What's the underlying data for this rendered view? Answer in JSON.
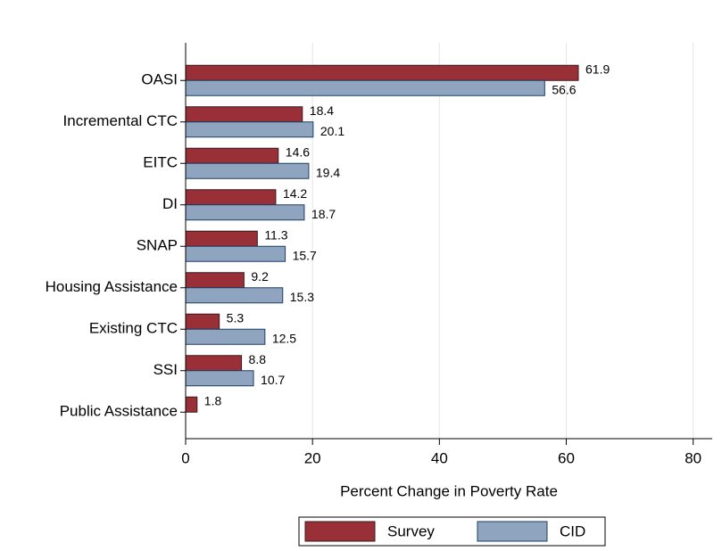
{
  "chart_data": {
    "type": "bar",
    "orientation": "horizontal",
    "categories": [
      "OASI",
      "Incremental CTC",
      "EITC",
      "DI",
      "SNAP",
      "Housing Assistance",
      "Existing CTC",
      "SSI",
      "Public Assistance"
    ],
    "series": [
      {
        "name": "Survey",
        "color": "#993038",
        "values": [
          61.9,
          18.4,
          14.6,
          14.2,
          11.3,
          9.2,
          5.3,
          8.8,
          1.8
        ]
      },
      {
        "name": "CID",
        "color": "#8ea4bf",
        "values": [
          56.6,
          20.1,
          19.4,
          18.7,
          15.7,
          15.3,
          12.5,
          10.7,
          null
        ]
      }
    ],
    "x_label": "Percent Change in Poverty Rate",
    "xlim": [
      0,
      83
    ],
    "xticks": [
      0,
      20,
      40,
      60,
      80
    ],
    "grid": true,
    "legend": "bottom"
  }
}
